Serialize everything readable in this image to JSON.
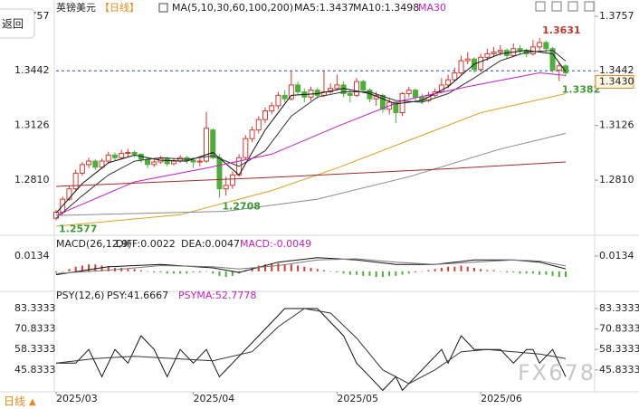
{
  "ui": {
    "back": "返回",
    "footer_period": "日线",
    "footer_arrow": "▲",
    "watermark": "FX678"
  },
  "chart_data": [
    {
      "type": "candlestick",
      "title": "英镑美元",
      "period": "【日线】",
      "labels": [
        {
          "text": "MA(5,10,30,60,100,200)",
          "color": "#222222"
        },
        {
          "text": "MA5:1.3437",
          "color": "#222222"
        },
        {
          "text": "MA10:1.3498",
          "color": "#222222"
        },
        {
          "text": "MA30",
          "color": "#c21fc2"
        }
      ],
      "up_color": "#d9382f",
      "down_color": "#4caf3a",
      "ohlc": [
        [
          1.259,
          1.264,
          1.2577,
          1.2625
        ],
        [
          1.2625,
          1.2715,
          1.261,
          1.27
        ],
        [
          1.27,
          1.278,
          1.269,
          1.276
        ],
        [
          1.276,
          1.287,
          1.275,
          1.285
        ],
        [
          1.285,
          1.2915,
          1.2835,
          1.29
        ],
        [
          1.29,
          1.294,
          1.288,
          1.292
        ],
        [
          1.292,
          1.293,
          1.287,
          1.2885
        ],
        [
          1.2885,
          1.2935,
          1.2875,
          1.292
        ],
        [
          1.292,
          1.2975,
          1.291,
          1.2955
        ],
        [
          1.2955,
          1.297,
          1.2925,
          1.294
        ],
        [
          1.294,
          1.2985,
          1.293,
          1.2965
        ],
        [
          1.2965,
          1.299,
          1.2945,
          1.297
        ],
        [
          1.297,
          1.298,
          1.294,
          1.296
        ],
        [
          1.296,
          1.2965,
          1.291,
          1.293
        ],
        [
          1.293,
          1.294,
          1.288,
          1.29
        ],
        [
          1.29,
          1.293,
          1.2885,
          1.2915
        ],
        [
          1.2915,
          1.295,
          1.2905,
          1.2935
        ],
        [
          1.2935,
          1.2945,
          1.289,
          1.2905
        ],
        [
          1.2905,
          1.2935,
          1.2895,
          1.292
        ],
        [
          1.292,
          1.2955,
          1.291,
          1.294
        ],
        [
          1.294,
          1.295,
          1.2905,
          1.2925
        ],
        [
          1.2925,
          1.294,
          1.288,
          1.2915
        ],
        [
          1.2915,
          1.2935,
          1.289,
          1.292
        ],
        [
          1.292,
          1.3205,
          1.291,
          1.311
        ],
        [
          1.31,
          1.311,
          1.293,
          1.294
        ],
        [
          1.294,
          1.296,
          1.2708,
          1.276
        ],
        [
          1.276,
          1.283,
          1.272,
          1.278
        ],
        [
          1.278,
          1.286,
          1.276,
          1.284
        ],
        [
          1.284,
          1.296,
          1.283,
          1.294
        ],
        [
          1.294,
          1.307,
          1.293,
          1.305
        ],
        [
          1.305,
          1.312,
          1.303,
          1.31
        ],
        [
          1.31,
          1.318,
          1.308,
          1.316
        ],
        [
          1.316,
          1.323,
          1.314,
          1.321
        ],
        [
          1.321,
          1.326,
          1.319,
          1.324
        ],
        [
          1.324,
          1.332,
          1.322,
          1.33
        ],
        [
          1.33,
          1.333,
          1.326,
          1.328
        ],
        [
          1.328,
          1.344,
          1.327,
          1.336
        ],
        [
          1.336,
          1.338,
          1.33,
          1.332
        ],
        [
          1.332,
          1.334,
          1.326,
          1.329
        ],
        [
          1.329,
          1.335,
          1.327,
          1.333
        ],
        [
          1.333,
          1.3345,
          1.328,
          1.33
        ],
        [
          1.33,
          1.344,
          1.329,
          1.332
        ],
        [
          1.332,
          1.337,
          1.331,
          1.334
        ],
        [
          1.334,
          1.342,
          1.333,
          1.336
        ],
        [
          1.336,
          1.338,
          1.329,
          1.331
        ],
        [
          1.331,
          1.333,
          1.326,
          1.33
        ],
        [
          1.33,
          1.34,
          1.329,
          1.338
        ],
        [
          1.338,
          1.339,
          1.332,
          1.333
        ],
        [
          1.333,
          1.334,
          1.326,
          1.328
        ],
        [
          1.328,
          1.332,
          1.324,
          1.33
        ],
        [
          1.33,
          1.331,
          1.32,
          1.322
        ],
        [
          1.322,
          1.328,
          1.319,
          1.326
        ],
        [
          1.326,
          1.327,
          1.314,
          1.32
        ],
        [
          1.32,
          1.332,
          1.318,
          1.331
        ],
        [
          1.331,
          1.335,
          1.329,
          1.333
        ],
        [
          1.333,
          1.334,
          1.327,
          1.329
        ],
        [
          1.329,
          1.331,
          1.325,
          1.327
        ],
        [
          1.327,
          1.332,
          1.326,
          1.33
        ],
        [
          1.33,
          1.334,
          1.329,
          1.332
        ],
        [
          1.332,
          1.34,
          1.331,
          1.336
        ],
        [
          1.336,
          1.342,
          1.334,
          1.339
        ],
        [
          1.339,
          1.346,
          1.338,
          1.343
        ],
        [
          1.343,
          1.353,
          1.342,
          1.35
        ],
        [
          1.35,
          1.355,
          1.348,
          1.351
        ],
        [
          1.351,
          1.352,
          1.343,
          1.345
        ],
        [
          1.345,
          1.354,
          1.344,
          1.352
        ],
        [
          1.352,
          1.357,
          1.35,
          1.354
        ],
        [
          1.354,
          1.358,
          1.352,
          1.355
        ],
        [
          1.355,
          1.359,
          1.353,
          1.356
        ],
        [
          1.356,
          1.357,
          1.351,
          1.353
        ],
        [
          1.353,
          1.36,
          1.352,
          1.357
        ],
        [
          1.357,
          1.359,
          1.354,
          1.356
        ],
        [
          1.356,
          1.357,
          1.352,
          1.354
        ],
        [
          1.354,
          1.362,
          1.353,
          1.358
        ],
        [
          1.358,
          1.3631,
          1.356,
          1.3605
        ],
        [
          1.3605,
          1.3615,
          1.355,
          1.357
        ],
        [
          1.357,
          1.358,
          1.343,
          1.3445
        ],
        [
          1.3445,
          1.349,
          1.3382,
          1.347
        ],
        [
          1.347,
          1.348,
          1.341,
          1.343
        ]
      ],
      "series": [
        {
          "color": "#111111",
          "x": [
            0,
            4,
            8,
            12,
            16,
            20,
            24,
            28,
            32,
            36,
            40,
            44,
            48,
            52,
            56,
            60,
            64,
            68,
            72,
            76,
            78
          ],
          "values": [
            1.262,
            1.279,
            1.291,
            1.2955,
            1.2925,
            1.292,
            1.297,
            1.284,
            1.31,
            1.33,
            1.331,
            1.334,
            1.331,
            1.325,
            1.327,
            1.335,
            1.348,
            1.354,
            1.356,
            1.354,
            1.3437
          ]
        },
        {
          "color": "#333333",
          "x": [
            0,
            4,
            8,
            12,
            16,
            20,
            24,
            28,
            32,
            36,
            40,
            44,
            48,
            52,
            56,
            60,
            64,
            68,
            72,
            76,
            78
          ],
          "values": [
            1.259,
            1.272,
            1.284,
            1.292,
            1.294,
            1.293,
            1.295,
            1.289,
            1.298,
            1.318,
            1.329,
            1.332,
            1.332,
            1.327,
            1.326,
            1.331,
            1.34,
            1.35,
            1.355,
            1.356,
            1.3498
          ]
        },
        {
          "color": "#c21fc2",
          "x": [
            0,
            12,
            23,
            33,
            43,
            53,
            63,
            74,
            78
          ],
          "values": [
            1.2606,
            1.28,
            1.288,
            1.296,
            1.312,
            1.327,
            1.335,
            1.343,
            1.3415
          ]
        },
        {
          "color": "#e0a020",
          "x": [
            0,
            19,
            33,
            43,
            54,
            65,
            78
          ],
          "values": [
            1.2544,
            1.261,
            1.275,
            1.288,
            1.304,
            1.32,
            1.331
          ]
        },
        {
          "color": "#8a8a8a",
          "x": [
            0,
            26,
            40,
            54,
            68,
            78
          ],
          "values": [
            1.2606,
            1.263,
            1.27,
            1.283,
            1.299,
            1.308
          ]
        },
        {
          "color": "#a52a2a",
          "x": [
            0,
            33,
            61,
            78
          ],
          "values": [
            1.2774,
            1.2826,
            1.2878,
            1.2915
          ]
        }
      ],
      "annotations": [
        {
          "index": 74,
          "value": 1.3631,
          "kind": "high",
          "color": "#c0392b"
        },
        {
          "index": 0,
          "value": 1.2577,
          "kind": "low",
          "color": "#3f9a34"
        },
        {
          "index": 25,
          "value": 1.2708,
          "kind": "low",
          "color": "#3f9a34"
        },
        {
          "index": 77,
          "value": 1.3382,
          "kind": "low",
          "color": "#3f9a34"
        }
      ],
      "ref_line": 1.3442,
      "ref_color": "#2a4fc4",
      "last_price": {
        "value": 1.343,
        "label": "1.3430"
      },
      "ylim": [
        1.2502,
        1.383
      ],
      "yticks": [
        1.3757,
        1.3442,
        1.3126,
        {
          "value": 1.281,
          "label": "1.2810"
        }
      ],
      "xlim": [
        0,
        78
      ],
      "xticks": [
        {
          "value": 0,
          "label": "2025/03"
        },
        {
          "value": 21,
          "label": "2025/04"
        },
        {
          "value": 43,
          "label": "2025/05"
        },
        {
          "value": 65,
          "label": "2025/06"
        }
      ]
    },
    {
      "type": "macd",
      "labels": [
        {
          "text": "MACD(26,12,9)",
          "color": "#222222"
        },
        {
          "text": "DIFF:0.0022",
          "color": "#222222"
        },
        {
          "text": "DEA:0.0047",
          "color": "#222222"
        },
        {
          "text": "MACD:-0.0049",
          "color": "#c21fc2"
        }
      ],
      "histogram": {
        "up_color": "#d9382f",
        "down_color": "#4caf3a",
        "values": [
          -0.001,
          0,
          0.002,
          0.004,
          0.005,
          0.006,
          0.006,
          0.005,
          0.004,
          0.003,
          0.003,
          0.002,
          0.002,
          0.001,
          0,
          -0.001,
          -0.001,
          -0.002,
          -0.002,
          -0.002,
          -0.002,
          -0.001,
          -0.001,
          0,
          -0.002,
          -0.004,
          -0.005,
          -0.004,
          -0.002,
          0.001,
          0.003,
          0.005,
          0.006,
          0.007,
          0.007,
          0.006,
          0.006,
          0.005,
          0.004,
          0.003,
          0.002,
          0.001,
          0,
          -0.001,
          -0.002,
          -0.003,
          -0.003,
          -0.004,
          -0.004,
          -0.005,
          -0.005,
          -0.004,
          -0.004,
          -0.003,
          -0.002,
          -0.001,
          0,
          0.001,
          0.002,
          0.003,
          0.004,
          0.004,
          0.005,
          0.004,
          0.003,
          0.002,
          0.001,
          0.001,
          0,
          -0.001,
          -0.001,
          -0.002,
          -0.002,
          -0.002,
          -0.003,
          -0.003,
          -0.004,
          -0.005,
          -0.0049
        ]
      },
      "series": [
        {
          "color": "#111111",
          "x": [
            0,
            8,
            16,
            24,
            28,
            34,
            40,
            46,
            52,
            58,
            64,
            70,
            74,
            78
          ],
          "values": [
            -0.003,
            0.004,
            0.006,
            0.003,
            -0.001,
            0.008,
            0.012,
            0.01,
            0.006,
            0.006,
            0.01,
            0.01,
            0.008,
            0.0022
          ]
        },
        {
          "color": "#777777",
          "x": [
            0,
            8,
            16,
            24,
            28,
            34,
            40,
            46,
            52,
            58,
            64,
            70,
            74,
            78
          ],
          "values": [
            -0.002,
            0.001,
            0.005,
            0.004,
            0.002,
            0.005,
            0.01,
            0.011,
            0.008,
            0.006,
            0.008,
            0.01,
            0.009,
            0.0047
          ]
        }
      ],
      "ylim": [
        -0.016,
        0.03
      ],
      "yticks": [
        0.0134
      ]
    },
    {
      "type": "line",
      "labels": [
        {
          "text": "PSY(12,6)",
          "color": "#222222"
        },
        {
          "text": "PSY:41.6667",
          "color": "#222222"
        },
        {
          "text": "PSYMA:52.7778",
          "color": "#c21fc2"
        }
      ],
      "series": [
        {
          "color": "#111111",
          "x": [
            0,
            3,
            5,
            7,
            9,
            11,
            13,
            15,
            17,
            19,
            21,
            23,
            25,
            27,
            29,
            31,
            33,
            35,
            38,
            40,
            42,
            44,
            46,
            48,
            50,
            52,
            53,
            55,
            57,
            59,
            60,
            62,
            64,
            66,
            68,
            70,
            72,
            73,
            74,
            76,
            78
          ],
          "values": [
            50,
            50,
            58.3333,
            41.6667,
            58.3333,
            50,
            66.6667,
            58.3333,
            41.6667,
            58.3333,
            50,
            58.3333,
            41.6667,
            50,
            58.3333,
            66.6667,
            75,
            83.3333,
            83.3333,
            83.3333,
            75,
            66.6667,
            50,
            41.6667,
            33.3333,
            41.6667,
            33.3333,
            41.6667,
            50,
            58.3333,
            50,
            66.6667,
            58.3333,
            58.3333,
            58.3333,
            50,
            58.3333,
            58.3333,
            50,
            58.3333,
            41.6667
          ]
        },
        {
          "color": "#333333",
          "x": [
            0,
            6,
            12,
            18,
            24,
            30,
            34,
            38,
            42,
            46,
            50,
            54,
            58,
            62,
            66,
            70,
            74,
            78
          ],
          "values": [
            50,
            52.7778,
            54.1667,
            52.7778,
            51.3889,
            56.9444,
            72.2222,
            83.3333,
            80.5556,
            65.2778,
            45.8333,
            37.5,
            45.8333,
            56.9444,
            58.3333,
            56.9444,
            55.5556,
            52.7778
          ]
        }
      ],
      "ylim": [
        33,
        88.3
      ],
      "yticks": [
        83.3333,
        70.8333,
        58.3333,
        45.8333
      ]
    }
  ]
}
